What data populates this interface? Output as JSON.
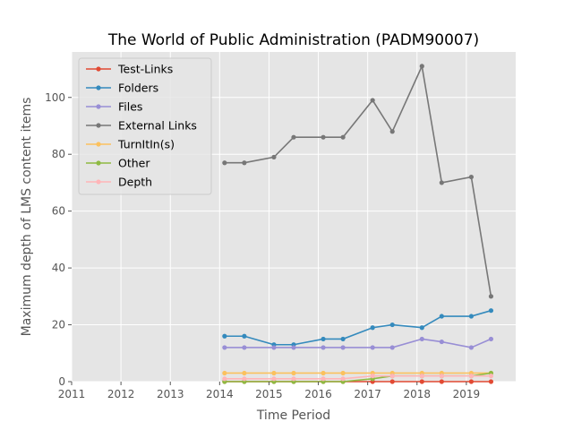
{
  "chart_data": {
    "type": "line",
    "title": "The World of Public Administration (PADM90007)",
    "xlabel": "Time Period",
    "ylabel": "Maximum depth of LMS content items",
    "xlim": [
      2011,
      2020
    ],
    "ylim": [
      0,
      116
    ],
    "xticks": [
      "2011",
      "2012",
      "2013",
      "2014",
      "2015",
      "2016",
      "2017",
      "2018",
      "2019"
    ],
    "yticks": [
      "0",
      "20",
      "40",
      "60",
      "80",
      "100"
    ],
    "grid": true,
    "legend_position": "top-left",
    "x": [
      2014.1,
      2014.5,
      2015.1,
      2015.5,
      2016.1,
      2016.5,
      2017.1,
      2017.5,
      2018.1,
      2018.5,
      2019.1,
      2019.5
    ],
    "series": [
      {
        "name": "Test-Links",
        "color": "#e24a33",
        "values": [
          0,
          0,
          0,
          0,
          0,
          0,
          0,
          0,
          0,
          0,
          0,
          0
        ]
      },
      {
        "name": "Folders",
        "color": "#348abd",
        "values": [
          16,
          16,
          13,
          13,
          15,
          15,
          19,
          20,
          19,
          23,
          23,
          25
        ]
      },
      {
        "name": "Files",
        "color": "#988ed5",
        "values": [
          12,
          12,
          12,
          12,
          12,
          12,
          12,
          12,
          15,
          14,
          12,
          15
        ]
      },
      {
        "name": "External Links",
        "color": "#777777",
        "values": [
          77,
          77,
          79,
          86,
          86,
          86,
          99,
          88,
          111,
          70,
          72,
          30
        ]
      },
      {
        "name": "TurnItIn(s)",
        "color": "#fbc15e",
        "values": [
          3,
          3,
          3,
          3,
          3,
          3,
          3,
          3,
          3,
          3,
          3,
          3
        ]
      },
      {
        "name": "Other",
        "color": "#8eba42",
        "values": [
          0,
          0,
          0,
          0,
          0,
          0,
          1,
          2,
          2,
          2,
          2,
          3
        ]
      },
      {
        "name": "Depth",
        "color": "#ffb5b8",
        "values": [
          1,
          1,
          1,
          1,
          1,
          1,
          2,
          2,
          2,
          2,
          2,
          2
        ]
      }
    ]
  }
}
